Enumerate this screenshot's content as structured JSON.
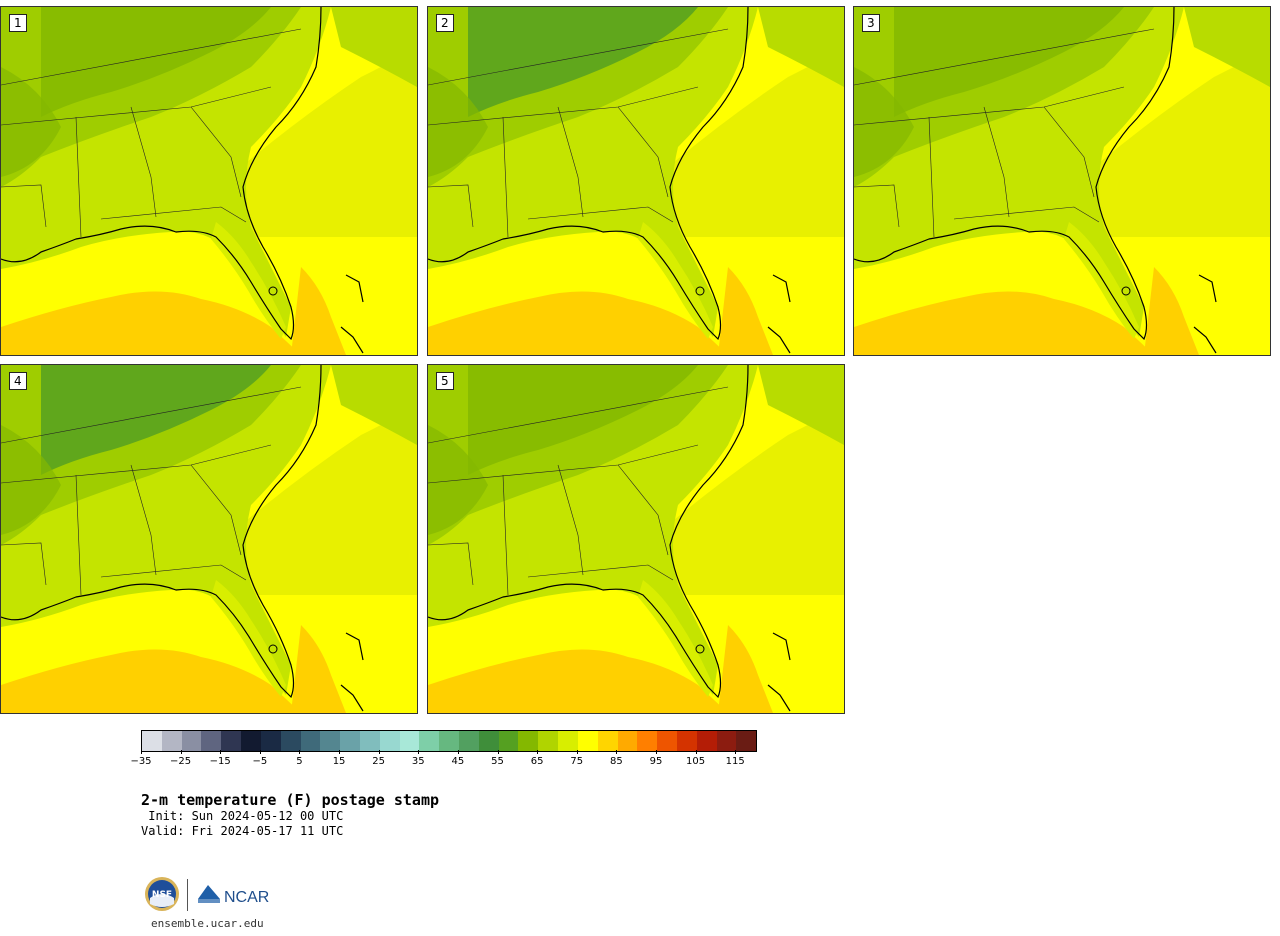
{
  "panels": [
    {
      "label": "1"
    },
    {
      "label": "2"
    },
    {
      "label": "3"
    },
    {
      "label": "4"
    },
    {
      "label": "5"
    }
  ],
  "colorbar": {
    "colors": [
      "#dcdfe6",
      "#b3b6c4",
      "#8a8fa3",
      "#5f6580",
      "#2f3652",
      "#121a30",
      "#1a2a44",
      "#2b4a60",
      "#3f6a7a",
      "#548690",
      "#6aa2a8",
      "#80bdbd",
      "#98d8d0",
      "#a8e8d8",
      "#7ecfa8",
      "#66b880",
      "#52a060",
      "#3f8e3a",
      "#55a021",
      "#84b800",
      "#b0d400",
      "#d8ee00",
      "#ffff00",
      "#ffd500",
      "#ffaa00",
      "#ff7f00",
      "#ee5500",
      "#d43300",
      "#b41d06",
      "#8c1c10",
      "#6a1c14"
    ],
    "tick_values": [
      "−35",
      "−25",
      "−15",
      "−5",
      "5",
      "15",
      "25",
      "35",
      "45",
      "55",
      "65",
      "75",
      "85",
      "95",
      "105",
      "115"
    ]
  },
  "title": "2-m temperature (F) postage stamp",
  "init": " Init: Sun 2024-05-12 00 UTC",
  "valid": "Valid: Fri 2024-05-17 11 UTC",
  "url": "ensemble.ucar.edu",
  "logo_text": {
    "nsf": "NSF",
    "ncar": "NCAR"
  },
  "legend_units": "F"
}
